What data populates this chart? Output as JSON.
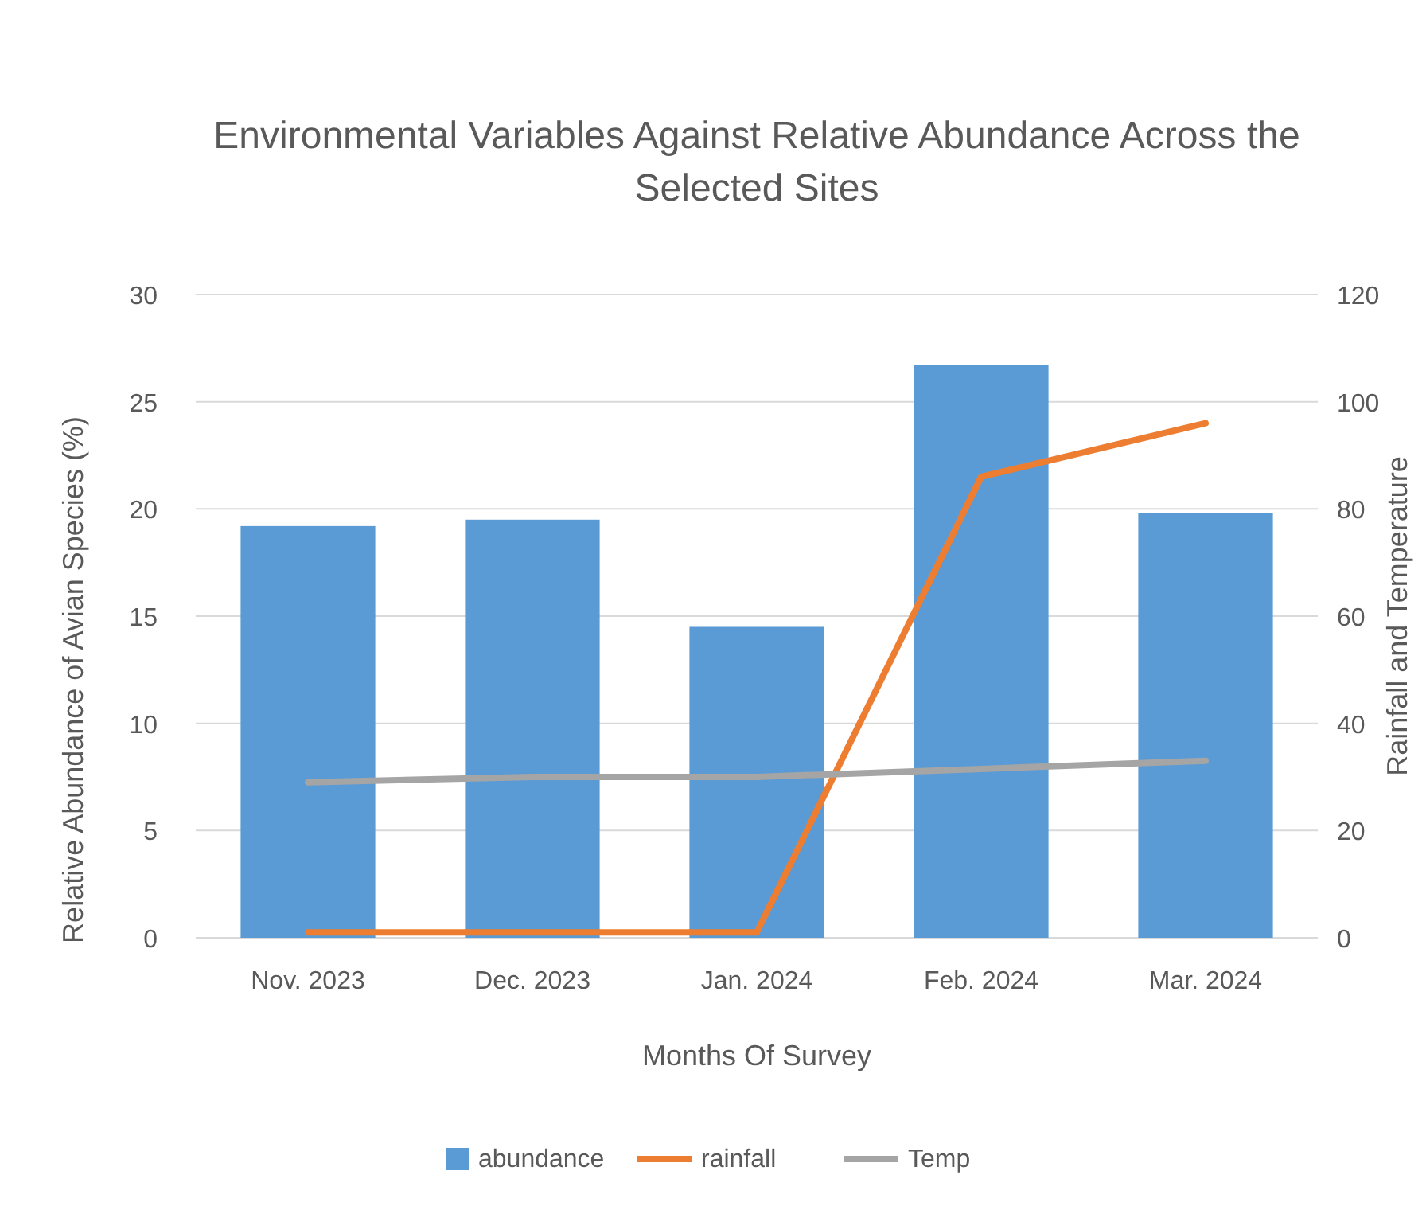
{
  "chart_data": {
    "type": "bar",
    "title": "Environmental Variables Against Relative Abundance Across the Selected Sites",
    "xlabel": "Months Of Survey",
    "ylabel": "Relative Abundance of Avian Species (%)",
    "y2label": "Rainfall and Temperature",
    "categories": [
      "Nov. 2023",
      "Dec. 2023",
      "Jan. 2024",
      "Feb. 2024",
      "Mar. 2024"
    ],
    "series": [
      {
        "name": "abundance",
        "color": "#5b9bd5",
        "values": [
          19.2,
          19.5,
          14.5,
          26.7,
          19.8
        ]
      },
      {
        "name": "rainfall",
        "type": "line",
        "axis": "y2",
        "color": "#ed7d31",
        "values": [
          1,
          1,
          1,
          86,
          96
        ]
      },
      {
        "name": "Temp",
        "type": "line",
        "axis": "y2",
        "color": "#a5a5a5",
        "values": [
          29,
          30,
          30,
          31.5,
          33
        ]
      }
    ],
    "ylim": [
      0,
      30
    ],
    "yticks": [
      0,
      5,
      10,
      15,
      20,
      25,
      30
    ],
    "y2lim": [
      0,
      120
    ],
    "y2ticks": [
      0,
      20,
      40,
      60,
      80,
      100,
      120
    ],
    "grid": "y",
    "legend": "bottom",
    "marker": "none",
    "line_style": "solid"
  }
}
